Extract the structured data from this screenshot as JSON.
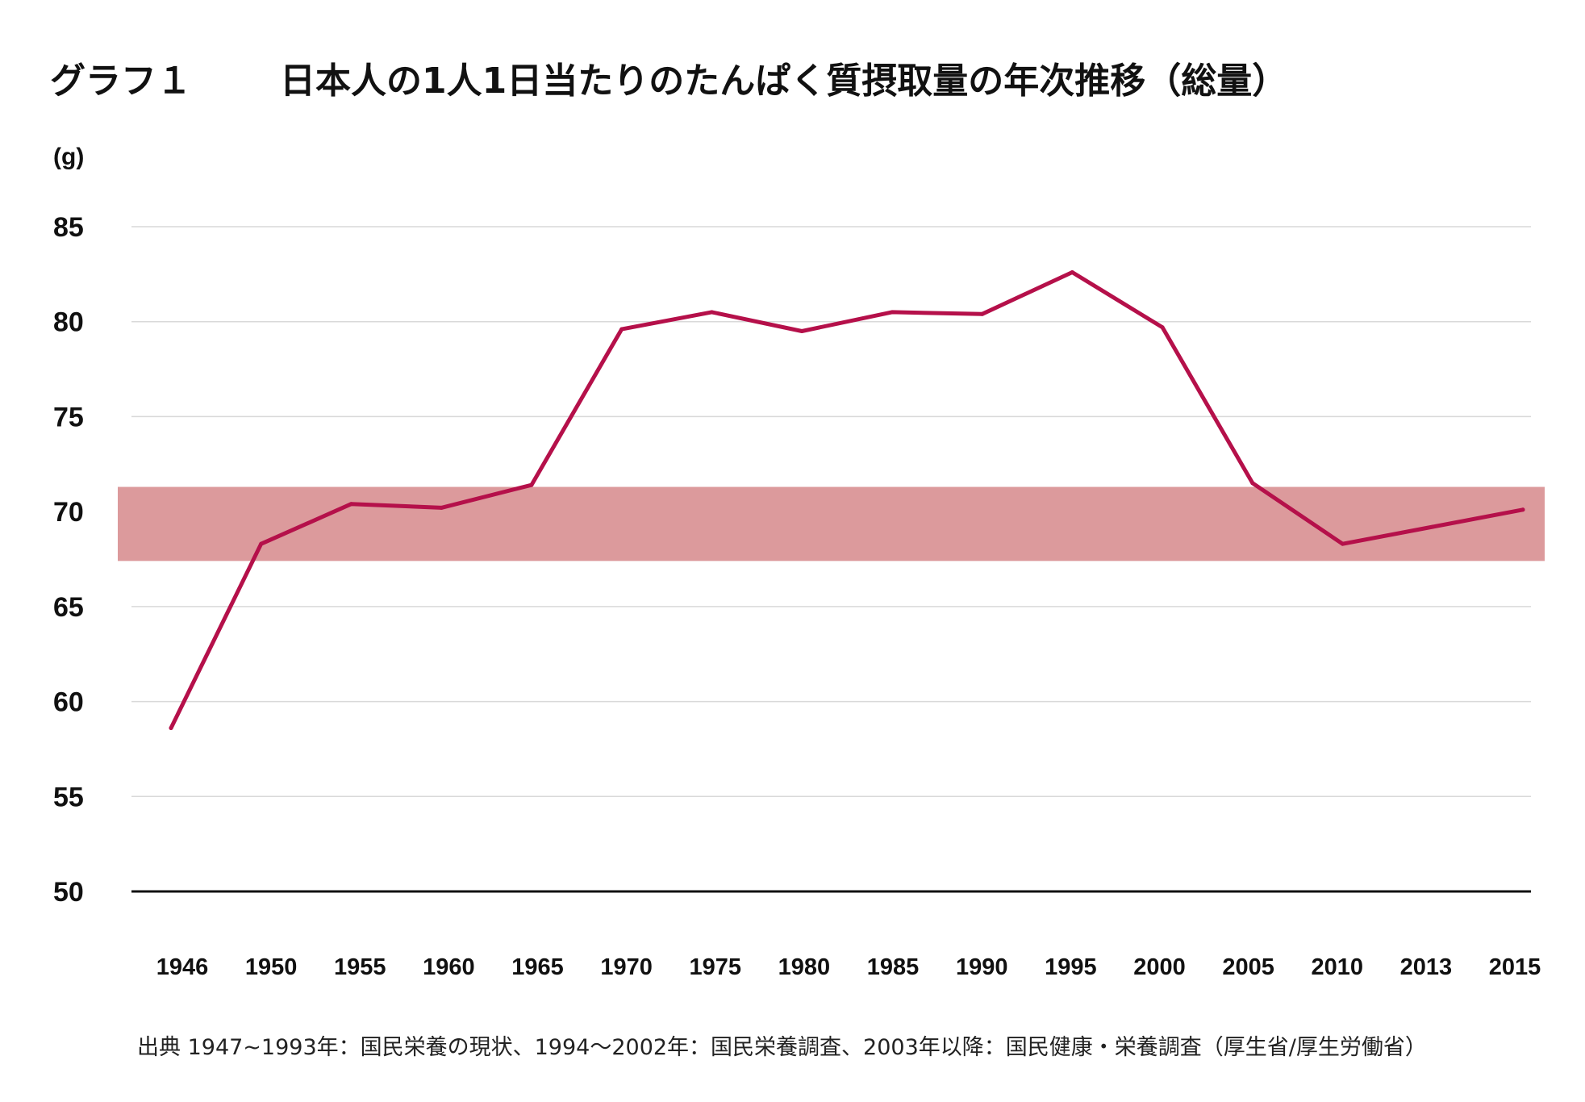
{
  "title": {
    "label": "グラフ１",
    "main": "日本人の1人1日当たりのたんぱく質摂取量の年次推移（総量）"
  },
  "unit_label": "(g)",
  "source_note": "出典 1947~1993年：国民栄養の現状、1994〜2002年：国民栄養調査、2003年以降：国民健康・栄養調査（厚生省/厚生労働省）",
  "colors": {
    "line": "#b5104a",
    "band": "#dc9a9c",
    "grid": "#d9d9d9",
    "axis": "#111111"
  },
  "chart_data": {
    "type": "line",
    "categories": [
      "1946",
      "1950",
      "1955",
      "1960",
      "1965",
      "1970",
      "1975",
      "1980",
      "1985",
      "1990",
      "1995",
      "2000",
      "2005",
      "2010",
      "2013",
      "2015"
    ],
    "series": [
      {
        "values": [
          58.6,
          68.3,
          70.4,
          70.2,
          71.4,
          79.6,
          80.5,
          79.5,
          80.5,
          80.4,
          82.6,
          79.7,
          71.5,
          68.3,
          69.2,
          70.1
        ]
      }
    ],
    "ylim": [
      50,
      85
    ],
    "yticks": [
      "50",
      "55",
      "60",
      "65",
      "70",
      "75",
      "80",
      "85"
    ],
    "shaded_band": {
      "from": 67.4,
      "to": 71.3
    },
    "grid": true,
    "xlabel": "",
    "ylabel": "(g)"
  }
}
